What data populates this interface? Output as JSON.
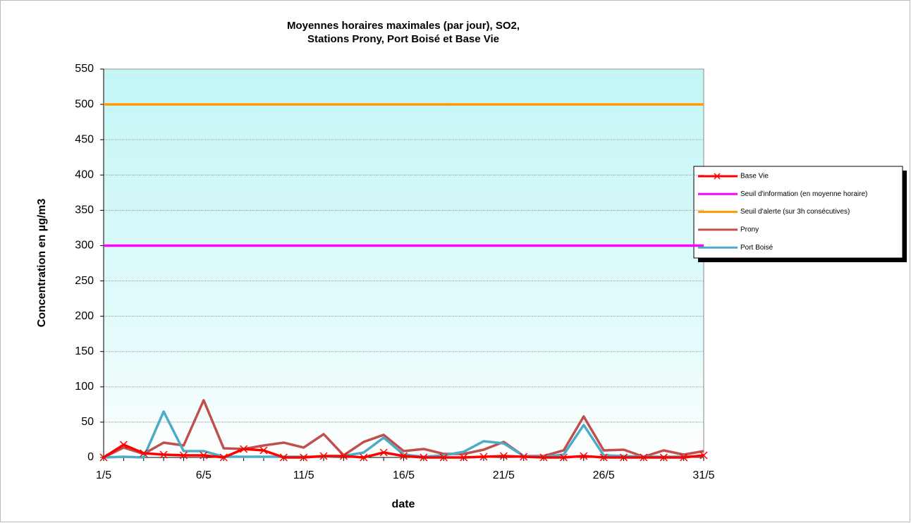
{
  "chart_data": {
    "type": "line",
    "title": "Moyennes horaires maximales (par jour), SO2,",
    "subtitle": "Stations Prony, Port Boisé et Base Vie",
    "x_label": "date",
    "y_label": "Concentration en µg/m3",
    "categories": [
      "1/5",
      null,
      null,
      null,
      null,
      "6/5",
      null,
      null,
      null,
      null,
      "11/5",
      null,
      null,
      null,
      null,
      "16/5",
      null,
      null,
      null,
      null,
      "21/5",
      null,
      null,
      null,
      null,
      "26/5",
      null,
      null,
      null,
      null,
      "31/5"
    ],
    "series": [
      {
        "name": "Base Vie",
        "color": "#ff0000",
        "marker": "x",
        "values": [
          0,
          18,
          6,
          4,
          3,
          3,
          0,
          12,
          10,
          0,
          0,
          2,
          2,
          0,
          7,
          2,
          0,
          0,
          0,
          1,
          2,
          1,
          0,
          0,
          2,
          0,
          0,
          0,
          0,
          0,
          3
        ]
      },
      {
        "name": "Seuil d'information (en moyenne horaire)",
        "color": "#ff00ff",
        "values": [
          300,
          300,
          300,
          300,
          300,
          300,
          300,
          300,
          300,
          300,
          300,
          300,
          300,
          300,
          300,
          300,
          300,
          300,
          300,
          300,
          300,
          300,
          300,
          300,
          300,
          300,
          300,
          300,
          300,
          300,
          300
        ]
      },
      {
        "name": "Seuil d'alerte (sur 3h consécutives)",
        "color": "#ff9900",
        "values": [
          500,
          500,
          500,
          500,
          500,
          500,
          500,
          500,
          500,
          500,
          500,
          500,
          500,
          500,
          500,
          500,
          500,
          500,
          500,
          500,
          500,
          500,
          500,
          500,
          500,
          500,
          500,
          500,
          500,
          500,
          500
        ]
      },
      {
        "name": "Prony",
        "color": "#c0504d",
        "values": [
          0,
          14,
          5,
          21,
          17,
          81,
          13,
          12,
          17,
          21,
          14,
          33,
          3,
          22,
          32,
          9,
          12,
          5,
          5,
          11,
          22,
          2,
          2,
          10,
          58,
          10,
          11,
          1,
          10,
          4,
          9
        ]
      },
      {
        "name": "Port Boisé",
        "color": "#4bacc6",
        "values": [
          0,
          1,
          0,
          65,
          9,
          9,
          1,
          1,
          1,
          1,
          1,
          1,
          2,
          7,
          28,
          4,
          1,
          3,
          8,
          23,
          20,
          2,
          1,
          4,
          46,
          3,
          2,
          1,
          1,
          1,
          2
        ]
      }
    ],
    "ylim": [
      0,
      550
    ],
    "yticks": [
      0,
      50,
      100,
      150,
      200,
      250,
      300,
      350,
      400,
      450,
      500,
      550
    ],
    "grid": true,
    "legend": "right"
  }
}
